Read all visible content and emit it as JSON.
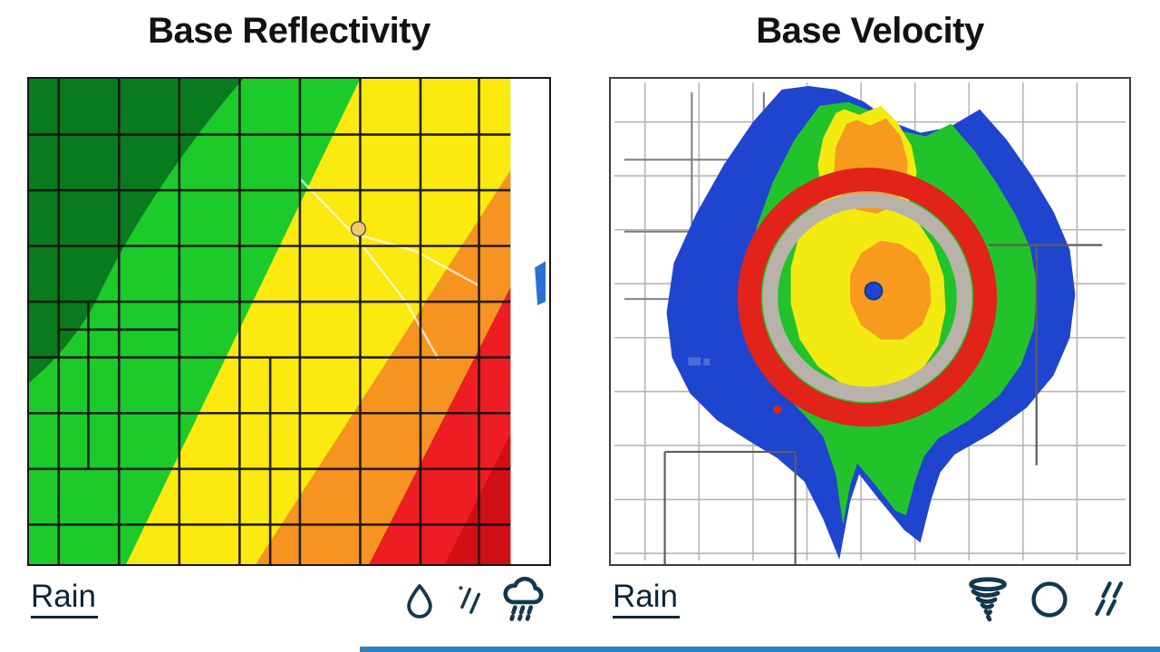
{
  "panels": {
    "reflectivity": {
      "title": "Base Reflectivity",
      "caption": "Rain",
      "legend_icons": [
        "raindrop",
        "drizzle-slashes",
        "rain-cloud"
      ],
      "palette_order": [
        "dark-green",
        "green",
        "yellow",
        "orange",
        "red"
      ]
    },
    "velocity": {
      "title": "Base Velocity",
      "caption": "Rain",
      "legend_icons": [
        "tornado",
        "circle",
        "rain-slashes"
      ],
      "annotation": "red-circle-highlight"
    }
  },
  "colors": {
    "icon-ink": "#14384d",
    "title-ink": "#121212",
    "caption-ink": "#0d2537",
    "refl-dark-green": "#0a7a1f",
    "refl-green": "#1ccb29",
    "refl-yellow": "#fbe90f",
    "refl-orange": "#f79320",
    "refl-red": "#ee1c23",
    "refl-dark-red": "#cf0e16",
    "vel-blue": "#1f45cf",
    "vel-green": "#22c32a",
    "vel-yellow": "#f3ea12",
    "vel-orange": "#f79a1e",
    "ring-red": "#e2231a",
    "ring-gray": "#b9b2ab",
    "water-blue": "#2f6fd1",
    "progress-blue": "#2e7fc2"
  },
  "progress_bar": {
    "start_percent": 31
  }
}
